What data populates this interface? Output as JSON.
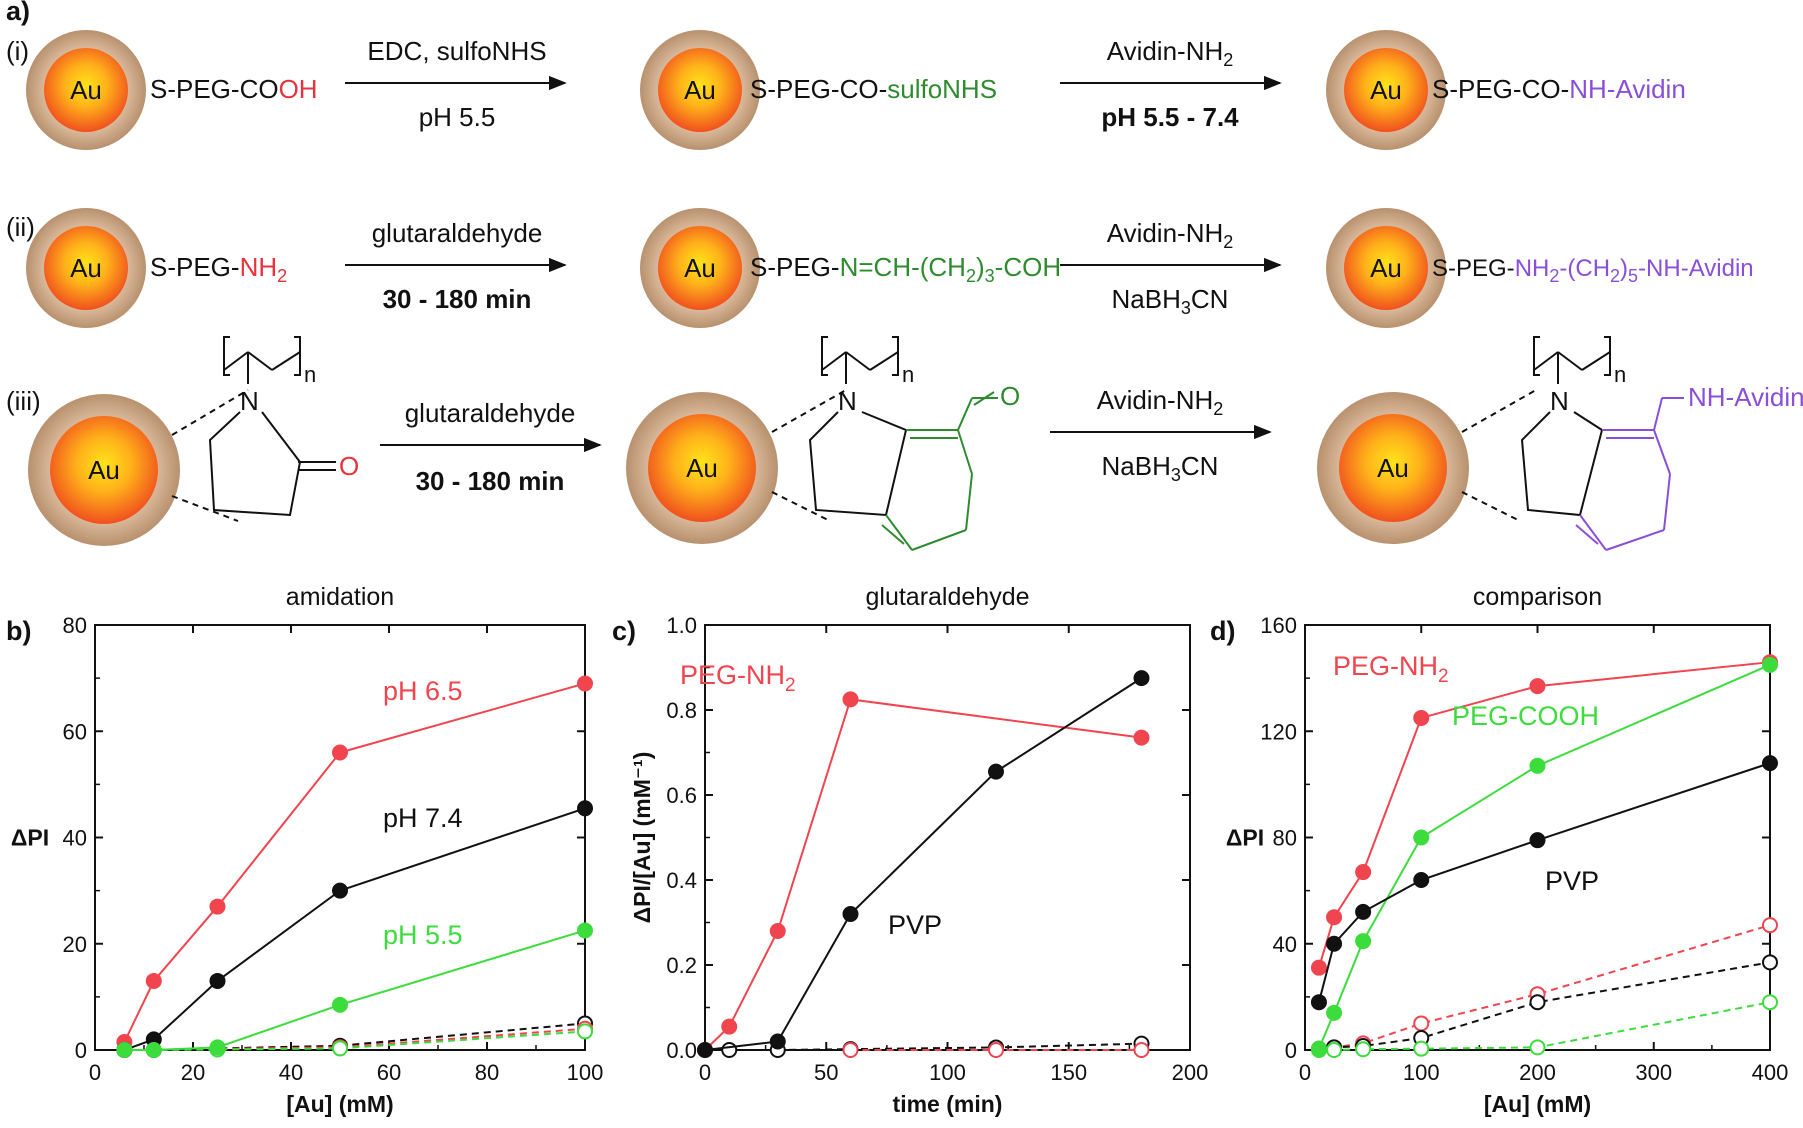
{
  "panel_labels": {
    "a": "a)",
    "b": "b)",
    "c": "c)",
    "d": "d)"
  },
  "scheme": {
    "rows": [
      {
        "label": "(i)",
        "start": {
          "prefix": "S-PEG-CO",
          "suffix": "OH"
        },
        "arrow1": {
          "top": "EDC, sulfoNHS",
          "bottom": "pH 5.5"
        },
        "mid": {
          "prefix": "S-PEG-CO-",
          "suffix": "sulfoNHS"
        },
        "arrow2": {
          "top_main": "Avidin-NH",
          "top_sub": "2",
          "bottom": "pH 5.5 - 7.4"
        },
        "end": {
          "prefix": "S-PEG-CO-",
          "suffix": "NH-Avidin"
        }
      },
      {
        "label": "(ii)",
        "start": {
          "prefix": "S-PEG-",
          "suffix_main": "NH",
          "suffix_sub": "2"
        },
        "arrow1": {
          "top": "glutaraldehyde",
          "bottom": "30 - 180 min"
        },
        "mid": {
          "prefix": "S-PEG-",
          "p1": "N=CH-(CH",
          "s1": "2",
          "p2": ")",
          "s2": "3",
          "p3": "-COH"
        },
        "arrow2": {
          "top_main": "Avidin-NH",
          "top_sub": "2",
          "bottom_a": "NaBH",
          "bottom_sub": "3",
          "bottom_b": "CN"
        },
        "end": {
          "prefix": "S-PEG-",
          "p1": "NH",
          "s1": "2",
          "p2": "-(CH",
          "s2": "2",
          "p3": ")",
          "s3": "5",
          "p4": "-NH-Avidin"
        }
      },
      {
        "label": "(iii)",
        "monomer": {
          "n": "n",
          "N": "N",
          "O": "O"
        },
        "arrow1": {
          "top": "glutaraldehyde",
          "bottom": "30 - 180 min"
        },
        "arrow2": {
          "top_main": "Avidin-NH",
          "top_sub": "2",
          "bottom_a": "NaBH",
          "bottom_sub": "3",
          "bottom_b": "CN"
        },
        "end_label": "NH-Avidin"
      }
    ],
    "particle_label": "Au",
    "colors": {
      "red": "#e8323c",
      "green": "#2e8b2e",
      "purple": "#8a4fd8",
      "shell": "#c9a98a",
      "core_outer": "#f25c1e",
      "core_inner": "#ffd21a"
    }
  },
  "chart_data": [
    {
      "type": "line",
      "panel": "b)",
      "title": "amidation",
      "xlabel": "[Au] (mM)",
      "ylabel": "ΔPI",
      "xlim": [
        0,
        100
      ],
      "ylim": [
        0,
        80
      ],
      "xticks": [
        0,
        20,
        40,
        60,
        80,
        100
      ],
      "yticks": [
        0,
        20,
        40,
        60,
        80
      ],
      "series": [
        {
          "name": "pH 6.5",
          "color": "#f0444e",
          "filled": true,
          "dashed": false,
          "x": [
            6,
            12,
            25,
            50,
            100
          ],
          "y": [
            1.5,
            13,
            27,
            56,
            69
          ]
        },
        {
          "name": "pH 7.4",
          "color": "#111111",
          "filled": true,
          "dashed": false,
          "x": [
            6,
            12,
            25,
            50,
            100
          ],
          "y": [
            0,
            2,
            13,
            30,
            45.5
          ]
        },
        {
          "name": "pH 5.5",
          "color": "#3ddc3d",
          "filled": true,
          "dashed": false,
          "x": [
            6,
            12,
            25,
            50,
            100
          ],
          "y": [
            0,
            0,
            0.5,
            8.5,
            22.5
          ]
        },
        {
          "color": "#111111",
          "filled": false,
          "dashed": true,
          "x": [
            6,
            12,
            25,
            50,
            100
          ],
          "y": [
            0,
            0,
            0.3,
            0.8,
            5
          ]
        },
        {
          "color": "#f0444e",
          "filled": false,
          "dashed": true,
          "x": [
            6,
            12,
            25,
            50,
            100
          ],
          "y": [
            0,
            0,
            0.2,
            0.5,
            4
          ]
        },
        {
          "color": "#3ddc3d",
          "filled": false,
          "dashed": true,
          "x": [
            6,
            12,
            25,
            50,
            100
          ],
          "y": [
            0,
            0,
            0.1,
            0.3,
            3.5
          ]
        }
      ]
    },
    {
      "type": "line",
      "panel": "c)",
      "title": "glutaraldehyde",
      "xlabel": "time (min)",
      "ylabel": "ΔPI/[Au] (mM⁻¹)",
      "xlim": [
        0,
        200
      ],
      "ylim": [
        0,
        1.0
      ],
      "xticks": [
        0,
        50,
        100,
        150,
        200
      ],
      "yticks": [
        0.0,
        0.2,
        0.4,
        0.6,
        0.8,
        1.0
      ],
      "series": [
        {
          "name": "PEG-NH2",
          "color": "#f0444e",
          "filled": true,
          "dashed": false,
          "x": [
            0,
            10,
            30,
            60,
            180
          ],
          "y": [
            0,
            0.055,
            0.28,
            0.825,
            0.735
          ]
        },
        {
          "name": "PVP",
          "color": "#111111",
          "filled": true,
          "dashed": false,
          "x": [
            0,
            30,
            60,
            120,
            180
          ],
          "y": [
            0,
            0.02,
            0.32,
            0.655,
            0.875
          ]
        },
        {
          "color": "#111111",
          "filled": false,
          "dashed": true,
          "x": [
            0,
            10,
            30,
            60,
            120,
            180
          ],
          "y": [
            0,
            0,
            0,
            0.002,
            0.006,
            0.015
          ]
        },
        {
          "color": "#f0444e",
          "filled": false,
          "dashed": true,
          "x": [
            60,
            120,
            180
          ],
          "y": [
            0,
            0,
            0
          ]
        }
      ]
    },
    {
      "type": "line",
      "panel": "d)",
      "title": "comparison",
      "xlabel": "[Au] (mM)",
      "ylabel": "ΔPI",
      "xlim": [
        0,
        400
      ],
      "ylim": [
        0,
        160
      ],
      "xticks": [
        0,
        100,
        200,
        300,
        400
      ],
      "yticks": [
        0,
        40,
        80,
        120,
        160
      ],
      "series": [
        {
          "name": "PEG-NH2",
          "color": "#f0444e",
          "filled": true,
          "dashed": false,
          "x": [
            12,
            25,
            50,
            100,
            200,
            400
          ],
          "y": [
            31,
            50,
            67,
            125,
            137,
            146
          ]
        },
        {
          "name": "PEG-COOH",
          "color": "#3ddc3d",
          "filled": true,
          "dashed": false,
          "x": [
            12,
            25,
            50,
            100,
            200,
            400
          ],
          "y": [
            0.5,
            14,
            41,
            80,
            107,
            145
          ]
        },
        {
          "name": "PVP",
          "color": "#111111",
          "filled": true,
          "dashed": false,
          "x": [
            12,
            25,
            50,
            100,
            200,
            400
          ],
          "y": [
            18,
            40,
            52,
            64,
            79,
            108
          ]
        },
        {
          "color": "#f0444e",
          "filled": false,
          "dashed": true,
          "x": [
            12,
            25,
            50,
            100,
            200,
            400
          ],
          "y": [
            0.5,
            1,
            2.5,
            10,
            21,
            47
          ]
        },
        {
          "color": "#111111",
          "filled": false,
          "dashed": true,
          "x": [
            12,
            25,
            50,
            100,
            200,
            400
          ],
          "y": [
            0.3,
            1,
            1.5,
            4.5,
            18,
            33
          ]
        },
        {
          "color": "#3ddc3d",
          "filled": false,
          "dashed": true,
          "x": [
            12,
            25,
            50,
            100,
            200,
            400
          ],
          "y": [
            0,
            0,
            0.3,
            0.5,
            1,
            18
          ]
        }
      ]
    }
  ],
  "annotations": {
    "b": [
      {
        "text": "pH 6.5",
        "color": "#f0444e"
      },
      {
        "text": "pH 7.4",
        "color": "#111111"
      },
      {
        "text": "pH 5.5",
        "color": "#3ddc3d"
      }
    ],
    "c": {
      "peg_main": "PEG-NH",
      "peg_sub": "2",
      "pvp": "PVP"
    },
    "d": {
      "peg_main": "PEG-NH",
      "peg_sub": "2",
      "cooh": "PEG-COOH",
      "pvp": "PVP"
    }
  }
}
